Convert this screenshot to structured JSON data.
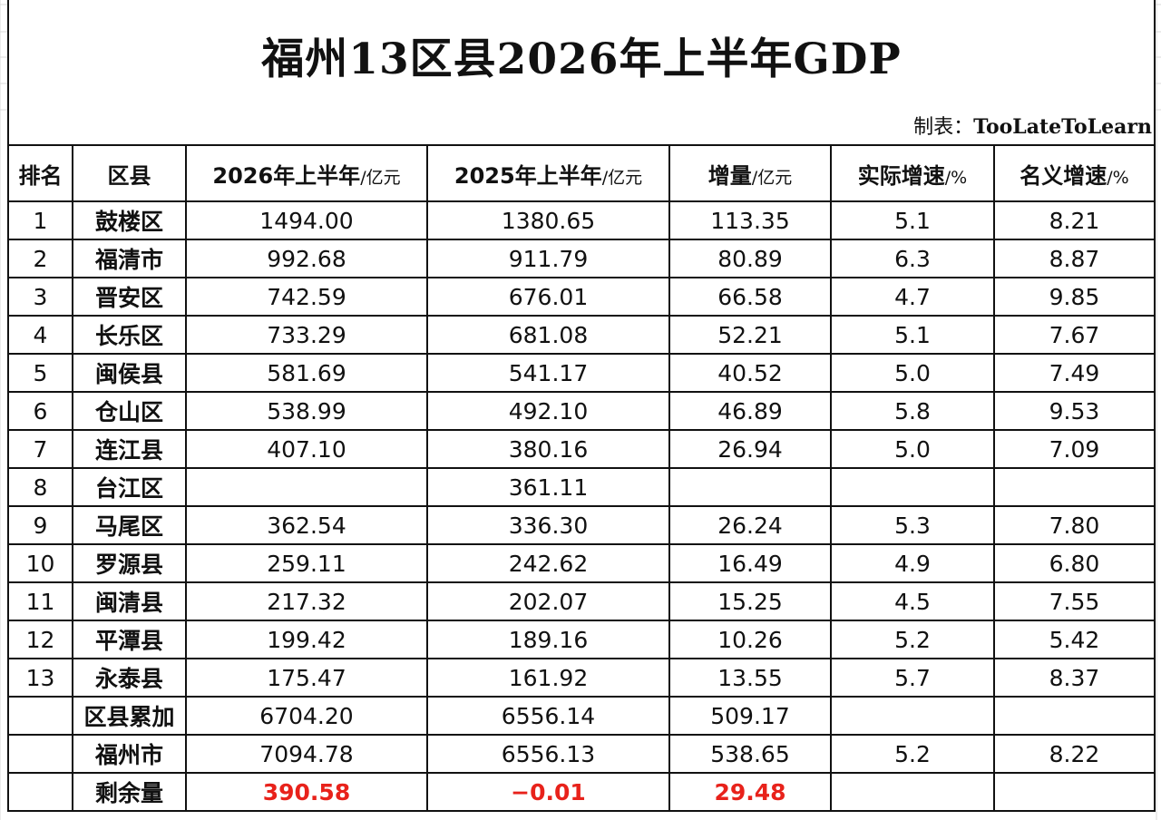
{
  "title": "福州13区县2026年上半年GDP",
  "maker_label": "制表：",
  "maker_name": "TooLateToLearn",
  "headers": [
    {
      "label": "排名",
      "unit": ""
    },
    {
      "label": "区县",
      "unit": ""
    },
    {
      "label": "2026年上半年",
      "unit": "/亿元"
    },
    {
      "label": "2025年上半年",
      "unit": "/亿元"
    },
    {
      "label": "增量",
      "unit": "/亿元"
    },
    {
      "label": "实际增速",
      "unit": "/%"
    },
    {
      "label": "名义增速",
      "unit": "/%"
    }
  ],
  "rows": [
    [
      "1",
      "鼓楼区",
      "1494.00",
      "1380.65",
      "113.35",
      "5.1",
      "8.21"
    ],
    [
      "2",
      "福清市",
      "992.68",
      "911.79",
      "80.89",
      "6.3",
      "8.87"
    ],
    [
      "3",
      "晋安区",
      "742.59",
      "676.01",
      "66.58",
      "4.7",
      "9.85"
    ],
    [
      "4",
      "长乐区",
      "733.29",
      "681.08",
      "52.21",
      "5.1",
      "7.67"
    ],
    [
      "5",
      "闽侯县",
      "581.69",
      "541.17",
      "40.52",
      "5.0",
      "7.49"
    ],
    [
      "6",
      "仓山区",
      "538.99",
      "492.10",
      "46.89",
      "5.8",
      "9.53"
    ],
    [
      "7",
      "连江县",
      "407.10",
      "380.16",
      "26.94",
      "5.0",
      "7.09"
    ],
    [
      "8",
      "台江区",
      "",
      "361.11",
      "",
      "",
      ""
    ],
    [
      "9",
      "马尾区",
      "362.54",
      "336.30",
      "26.24",
      "5.3",
      "7.80"
    ],
    [
      "10",
      "罗源县",
      "259.11",
      "242.62",
      "16.49",
      "4.9",
      "6.80"
    ],
    [
      "11",
      "闽清县",
      "217.32",
      "202.07",
      "15.25",
      "4.5",
      "7.55"
    ],
    [
      "12",
      "平潭县",
      "199.42",
      "189.16",
      "10.26",
      "5.2",
      "5.42"
    ],
    [
      "13",
      "永泰县",
      "175.47",
      "161.92",
      "13.55",
      "5.7",
      "8.37"
    ],
    [
      "",
      "区县累加",
      "6704.20",
      "6556.14",
      "509.17",
      "",
      ""
    ],
    [
      "",
      "福州市",
      "7094.78",
      "6556.13",
      "538.65",
      "5.2",
      "8.22"
    ],
    [
      "",
      "剩余量",
      "390.58",
      "−0.01",
      "29.48",
      "",
      ""
    ]
  ],
  "highlight_color": "#e8221b"
}
